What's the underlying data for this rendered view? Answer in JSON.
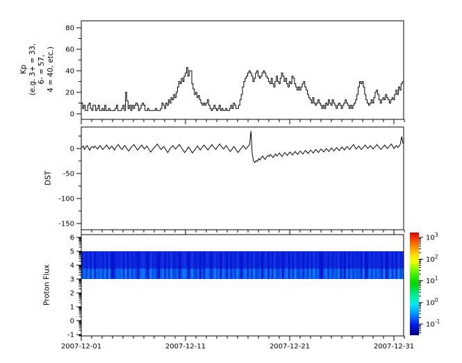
{
  "figure": {
    "background": "#ffffff",
    "series_color": "#000000"
  },
  "x_axis": {
    "tick_labels": [
      "2007-12-01",
      "2007-12-11",
      "2007-12-21",
      "2007-12-31"
    ],
    "major_tick_days": [
      1,
      11,
      21,
      31
    ],
    "days_shown": 32,
    "minor_tick_every_days": 1
  },
  "panels": {
    "kp": {
      "ylabel_display": "Kp\n(e.g. 3+ = 33,\n6- = 57,\n4 = 40, etc.)",
      "yticks": [
        0,
        20,
        40,
        60,
        80
      ],
      "yminor": [
        10,
        30,
        50,
        70
      ],
      "ylim": [
        -5,
        87
      ]
    },
    "dst": {
      "ylabel": "DST",
      "yticks": [
        0,
        -50,
        -100,
        -150
      ],
      "yminor": [
        25,
        -25,
        -75,
        -125
      ],
      "ylim": [
        -162,
        43
      ]
    },
    "flux": {
      "ylabel": "Proton Flux",
      "yticks": [
        6,
        5,
        4,
        3,
        2,
        1,
        0,
        -1
      ],
      "ylim": [
        -1.1,
        6.2
      ],
      "band": {
        "ymin": 3,
        "ymax": 5,
        "base_color": "#0013cf",
        "streak_full_color": "#2e58ff",
        "streak_low_color": "#00a2ff"
      }
    }
  },
  "colorbar": {
    "tick_exponents": [
      3,
      2,
      1,
      0,
      -1
    ],
    "tick_base": "10",
    "exp_range": [
      -1.5,
      3.2
    ],
    "stops": [
      {
        "o": 0,
        "c": "#dd0000"
      },
      {
        "o": 7,
        "c": "#ff4400"
      },
      {
        "o": 15,
        "c": "#ff9900"
      },
      {
        "o": 22,
        "c": "#ffdd00"
      },
      {
        "o": 28,
        "c": "#f4ff00"
      },
      {
        "o": 34,
        "c": "#99ff00"
      },
      {
        "o": 42,
        "c": "#33ee00"
      },
      {
        "o": 50,
        "c": "#00d800"
      },
      {
        "o": 57,
        "c": "#00e860"
      },
      {
        "o": 64,
        "c": "#00f2b0"
      },
      {
        "o": 70,
        "c": "#00e8f0"
      },
      {
        "o": 76,
        "c": "#00b4ff"
      },
      {
        "o": 83,
        "c": "#0066ff"
      },
      {
        "o": 90,
        "c": "#0018ee"
      },
      {
        "o": 100,
        "c": "#000080"
      }
    ]
  },
  "chart_data": [
    {
      "type": "line",
      "name": "kp-step-series",
      "title": "",
      "xlabel": "",
      "ylabel": "Kp (e.g. 3+ = 33, 6- = 57, 4 = 40, etc.)",
      "x_start": "2007-12-01",
      "step_hours": 3,
      "draw_style": "steps",
      "ylim": [
        -5,
        87
      ],
      "values_by_day": [
        [
          10,
          5,
          8,
          3,
          3,
          8,
          10,
          5
        ],
        [
          3,
          8,
          8,
          3,
          5,
          8,
          3,
          3
        ],
        [
          5,
          3,
          8,
          3,
          3,
          5,
          3,
          3
        ],
        [
          3,
          3,
          5,
          8,
          3,
          3,
          3,
          5
        ],
        [
          8,
          3,
          20,
          12,
          5,
          8,
          3,
          8
        ],
        [
          5,
          8,
          10,
          8,
          3,
          5,
          8,
          10
        ],
        [
          8,
          3,
          3,
          5,
          3,
          3,
          3,
          3
        ],
        [
          3,
          5,
          3,
          3,
          3,
          5,
          10,
          8
        ],
        [
          5,
          10,
          8,
          13,
          10,
          15,
          13,
          18
        ],
        [
          15,
          20,
          25,
          30,
          28,
          33,
          30,
          35
        ],
        [
          38,
          43,
          35,
          40,
          40,
          28,
          23,
          18
        ],
        [
          20,
          15,
          17,
          13,
          10,
          8,
          10,
          8
        ],
        [
          10,
          13,
          8,
          5,
          3,
          5,
          8,
          5
        ],
        [
          3,
          5,
          8,
          3,
          5,
          3,
          3,
          5
        ],
        [
          3,
          3,
          5,
          8,
          5,
          10,
          8,
          5
        ],
        [
          5,
          8,
          13,
          18,
          25,
          30,
          33,
          35
        ],
        [
          38,
          40,
          38,
          35,
          30,
          33,
          38,
          40
        ],
        [
          35,
          33,
          35,
          38,
          40,
          38,
          35,
          33
        ],
        [
          30,
          28,
          33,
          28,
          25,
          30,
          35,
          30
        ],
        [
          28,
          33,
          38,
          35,
          30,
          33,
          28,
          25
        ],
        [
          30,
          28,
          35,
          33,
          28,
          25,
          22,
          25
        ],
        [
          22,
          25,
          28,
          30,
          25,
          22,
          18,
          15
        ],
        [
          13,
          10,
          15,
          10,
          8,
          10,
          13,
          10
        ],
        [
          8,
          5,
          8,
          5,
          10,
          8,
          13,
          10
        ],
        [
          8,
          13,
          10,
          8,
          5,
          8,
          10,
          8
        ],
        [
          5,
          8,
          10,
          13,
          10,
          8,
          5,
          8
        ],
        [
          5,
          8,
          10,
          13,
          18,
          25,
          30,
          28
        ],
        [
          30,
          25,
          18,
          13,
          10,
          8,
          10,
          13
        ],
        [
          10,
          15,
          20,
          22,
          18,
          13,
          10,
          13
        ],
        [
          15,
          13,
          18,
          15,
          13,
          10,
          13,
          15
        ],
        [
          13,
          18,
          22,
          18,
          25,
          22,
          28,
          30
        ]
      ]
    },
    {
      "type": "line",
      "name": "dst-series",
      "title": "",
      "xlabel": "",
      "ylabel": "DST",
      "x_start": "2007-12-01",
      "step_hours": 3,
      "draw_style": "line",
      "ylim": [
        -162,
        43
      ],
      "values_by_day": [
        [
          2,
          5,
          -2,
          3,
          6,
          1,
          -3,
          2
        ],
        [
          4,
          1,
          5,
          2,
          -1,
          3,
          6,
          2
        ],
        [
          -2,
          1,
          4,
          7,
          3,
          -1,
          2,
          5
        ],
        [
          1,
          -3,
          2,
          5,
          8,
          4,
          0,
          -2
        ],
        [
          3,
          6,
          2,
          -2,
          -5,
          -1,
          3,
          5
        ],
        [
          8,
          4,
          0,
          -3,
          1,
          4,
          7,
          3
        ],
        [
          -1,
          2,
          5,
          1,
          -4,
          -7,
          -3,
          0
        ],
        [
          3,
          6,
          9,
          5,
          1,
          -2,
          2,
          4
        ],
        [
          0,
          -4,
          -8,
          -4,
          1,
          3,
          6,
          2
        ],
        [
          -1,
          2,
          5,
          8,
          4,
          0,
          -4,
          -8
        ],
        [
          -5,
          -1,
          3,
          0,
          -5,
          -9,
          -5,
          -2
        ],
        [
          2,
          5,
          1,
          -3,
          0,
          4,
          7,
          3
        ],
        [
          0,
          -3,
          1,
          4,
          8,
          4,
          1,
          -2
        ],
        [
          2,
          6,
          9,
          5,
          2,
          -1,
          3,
          6
        ],
        [
          2,
          -2,
          -6,
          -3,
          1,
          4,
          0,
          -4
        ],
        [
          -8,
          -5,
          -1,
          2,
          6,
          3,
          -1,
          2
        ],
        [
          5,
          8,
          35,
          -10,
          -25,
          -28,
          -24,
          -26
        ],
        [
          -20,
          -23,
          -18,
          -15,
          -19,
          -22,
          -17,
          -14
        ],
        [
          -16,
          -12,
          -15,
          -18,
          -14,
          -11,
          -15,
          -12
        ],
        [
          -9,
          -13,
          -16,
          -12,
          -8,
          -11,
          -14,
          -10
        ],
        [
          -7,
          -10,
          -13,
          -9,
          -6,
          -9,
          -12,
          -8
        ],
        [
          -5,
          -8,
          -11,
          -7,
          -4,
          -7,
          -10,
          -6
        ],
        [
          -3,
          -6,
          -9,
          -5,
          -2,
          -5,
          -8,
          -4
        ],
        [
          -1,
          -4,
          -7,
          -3,
          0,
          -3,
          -6,
          -2
        ],
        [
          1,
          -2,
          -5,
          -1,
          2,
          -1,
          -4,
          0
        ],
        [
          3,
          0,
          -3,
          1,
          4,
          1,
          -2,
          2
        ],
        [
          5,
          8,
          3,
          -1,
          2,
          5,
          1,
          -2
        ],
        [
          1,
          4,
          7,
          3,
          0,
          3,
          6,
          2
        ],
        [
          -1,
          2,
          5,
          8,
          4,
          1,
          -2,
          1
        ],
        [
          4,
          7,
          3,
          0,
          3,
          6,
          9,
          5
        ],
        [
          0,
          3,
          6,
          2,
          5,
          9,
          24,
          10
        ]
      ]
    },
    {
      "type": "heatmap",
      "name": "proton-flux-spectrogram",
      "title": "",
      "xlabel": "",
      "ylabel": "Proton Flux",
      "band_ymin": 3,
      "band_ymax": 5,
      "value_scale": "log10 flux, colorbar 1e-1 to 1e3",
      "approx_value_range": [
        0.1,
        1.0
      ],
      "column_intensity_digits": "473829165738291046572918364058721946305817293460587129436051872394608517263940581729346058172934605817293461728394610582736491508273645190283746519038271946"
    }
  ]
}
